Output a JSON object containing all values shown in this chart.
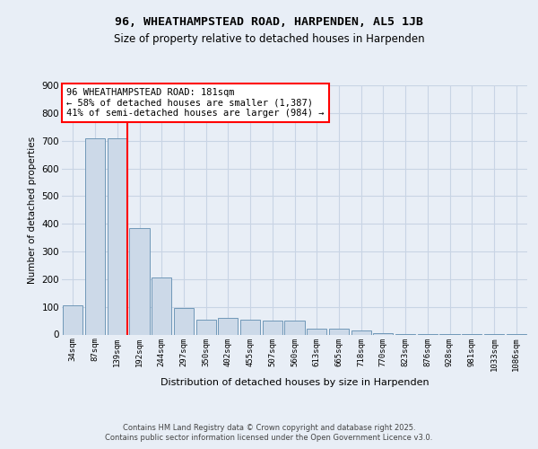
{
  "title_line1": "96, WHEATHAMPSTEAD ROAD, HARPENDEN, AL5 1JB",
  "title_line2": "Size of property relative to detached houses in Harpenden",
  "xlabel": "Distribution of detached houses by size in Harpenden",
  "ylabel": "Number of detached properties",
  "categories": [
    "34sqm",
    "87sqm",
    "139sqm",
    "192sqm",
    "244sqm",
    "297sqm",
    "350sqm",
    "402sqm",
    "455sqm",
    "507sqm",
    "560sqm",
    "613sqm",
    "665sqm",
    "718sqm",
    "770sqm",
    "823sqm",
    "876sqm",
    "928sqm",
    "981sqm",
    "1033sqm",
    "1086sqm"
  ],
  "values": [
    107,
    710,
    710,
    385,
    207,
    95,
    55,
    60,
    55,
    50,
    50,
    20,
    20,
    15,
    5,
    2,
    2,
    1,
    1,
    1,
    1
  ],
  "bar_color": "#ccd9e8",
  "bar_edge_color": "#7098b8",
  "grid_color": "#c8d4e4",
  "background_color": "#e8eef6",
  "vline_color": "red",
  "annotation_text": "96 WHEATHAMPSTEAD ROAD: 181sqm\n← 58% of detached houses are smaller (1,387)\n41% of semi-detached houses are larger (984) →",
  "annotation_box_color": "white",
  "annotation_box_edge_color": "red",
  "footer_text": "Contains HM Land Registry data © Crown copyright and database right 2025.\nContains public sector information licensed under the Open Government Licence v3.0.",
  "ylim": [
    0,
    900
  ],
  "yticks": [
    0,
    100,
    200,
    300,
    400,
    500,
    600,
    700,
    800,
    900
  ]
}
